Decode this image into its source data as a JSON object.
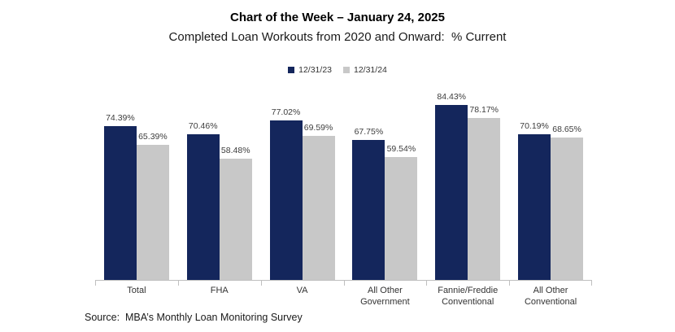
{
  "header": {
    "title": "Chart of the Week – January 24, 2025",
    "subtitle": "Completed Loan Workouts from 2020 and Onward:  % Current"
  },
  "source": "Source:  MBA’s Monthly Loan Monitoring Survey",
  "colors": {
    "series1": "#14265c",
    "series2": "#c8c8c8",
    "axis": "#bfbfbf",
    "label_text": "#3d3d3d"
  },
  "chart_data": {
    "type": "bar",
    "title": "Chart of the Week – January 24, 2025",
    "subtitle": "Completed Loan Workouts from 2020 and Onward:  % Current",
    "categories": [
      "Total",
      "FHA",
      "VA",
      "All Other Government",
      "Fannie/Freddie\nConventional",
      "All Other\nConventional"
    ],
    "series": [
      {
        "name": "12/31/23",
        "color": "#14265c",
        "values": [
          74.39,
          70.46,
          77.02,
          67.75,
          84.43,
          70.19
        ]
      },
      {
        "name": "12/31/24",
        "color": "#c8c8c8",
        "values": [
          65.39,
          58.48,
          69.59,
          59.54,
          78.17,
          68.65
        ]
      }
    ],
    "value_label_suffix": "%",
    "value_label_decimals": 2,
    "xlabel": "",
    "ylabel": "",
    "ylim": [
      0,
      90
    ],
    "grid": false,
    "y_axis_visible": false,
    "legend_position": "top",
    "source": "Source:  MBA’s Monthly Loan Monitoring Survey"
  }
}
